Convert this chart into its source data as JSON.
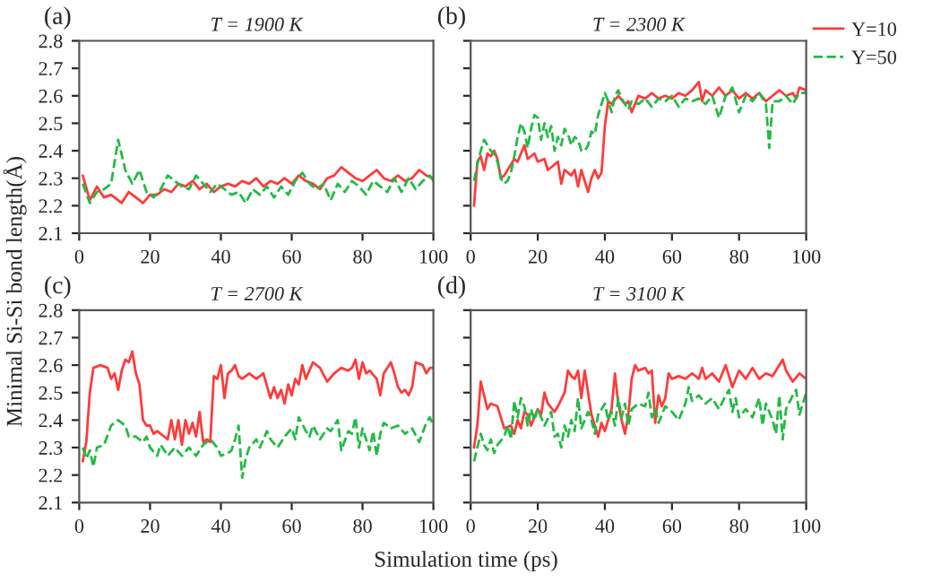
{
  "chart_data": [
    {
      "type": "line",
      "title": "T = 1900 K",
      "ylabel": "Minimal Si-Si bond length(Å)",
      "annotations": [
        "(a)"
      ],
      "xlim": [
        0,
        100
      ],
      "xticks": [
        0,
        20,
        40,
        60,
        80,
        100
      ],
      "ylim": [
        2.1,
        2.8
      ],
      "yticks": [
        2.1,
        2.2,
        2.3,
        2.4,
        2.5,
        2.6,
        2.7,
        2.8
      ],
      "grid": false,
      "legend": false,
      "series": [
        {
          "color": "#ff3b3b",
          "line_style": "solid",
          "x": [
            1,
            3,
            5,
            7,
            9,
            12,
            14,
            16,
            18,
            20,
            22,
            24,
            26,
            28,
            30,
            32,
            34,
            36,
            38,
            40,
            42,
            44,
            46,
            48,
            50,
            52,
            54,
            56,
            58,
            60,
            62,
            64,
            66,
            68,
            70,
            72,
            74,
            76,
            78,
            80,
            82,
            84,
            86,
            88,
            90,
            92,
            94,
            96,
            98,
            100
          ],
          "values": [
            2.31,
            2.22,
            2.27,
            2.23,
            2.24,
            2.21,
            2.25,
            2.23,
            2.21,
            2.24,
            2.24,
            2.26,
            2.25,
            2.28,
            2.27,
            2.29,
            2.26,
            2.28,
            2.25,
            2.27,
            2.28,
            2.27,
            2.29,
            2.28,
            2.3,
            2.27,
            2.29,
            2.28,
            2.3,
            2.28,
            2.31,
            2.29,
            2.28,
            2.26,
            2.3,
            2.31,
            2.34,
            2.32,
            2.3,
            2.29,
            2.31,
            2.33,
            2.3,
            2.29,
            2.31,
            2.29,
            2.3,
            2.33,
            2.31,
            2.3
          ]
        },
        {
          "color": "#22bb44",
          "line_style": "dashed",
          "x": [
            1,
            3,
            5,
            7,
            9,
            11,
            13,
            15,
            17,
            19,
            21,
            23,
            25,
            27,
            29,
            31,
            33,
            35,
            37,
            39,
            41,
            43,
            45,
            47,
            49,
            51,
            53,
            55,
            57,
            59,
            61,
            63,
            65,
            67,
            69,
            71,
            73,
            75,
            77,
            79,
            81,
            83,
            85,
            87,
            89,
            91,
            93,
            95,
            97,
            99,
            100
          ],
          "values": [
            2.28,
            2.21,
            2.25,
            2.26,
            2.28,
            2.44,
            2.33,
            2.28,
            2.33,
            2.25,
            2.23,
            2.26,
            2.31,
            2.29,
            2.27,
            2.26,
            2.31,
            2.28,
            2.25,
            2.28,
            2.26,
            2.24,
            2.25,
            2.21,
            2.26,
            2.24,
            2.27,
            2.23,
            2.27,
            2.24,
            2.29,
            2.32,
            2.28,
            2.26,
            2.28,
            2.22,
            2.28,
            2.25,
            2.29,
            2.27,
            2.24,
            2.29,
            2.27,
            2.25,
            2.3,
            2.25,
            2.3,
            2.26,
            2.29,
            2.31,
            2.29
          ]
        }
      ]
    },
    {
      "type": "line",
      "title": "T = 2300 K",
      "annotations": [
        "(b)"
      ],
      "xlim": [
        0,
        100
      ],
      "xticks": [
        0,
        20,
        40,
        60,
        80,
        100
      ],
      "ylim": [
        2.1,
        2.8
      ],
      "yticks": [
        2.1,
        2.2,
        2.3,
        2.4,
        2.5,
        2.6,
        2.7,
        2.8
      ],
      "tick_labels": "x",
      "grid": false,
      "legend": "right",
      "series": [
        {
          "name": "Y=10",
          "color": "#ff3b3b",
          "line_style": "solid",
          "x": [
            1,
            2,
            3,
            4,
            5,
            6,
            7,
            8,
            9,
            10,
            12,
            13,
            14,
            16,
            17,
            18,
            19,
            20,
            22,
            23,
            24,
            26,
            27,
            28,
            30,
            31,
            32,
            33,
            35,
            36,
            37,
            38,
            39,
            40,
            41,
            42,
            44,
            46,
            47,
            48,
            50,
            52,
            54,
            56,
            58,
            60,
            62,
            64,
            66,
            68,
            69,
            70,
            72,
            74,
            76,
            78,
            80,
            82,
            84,
            86,
            88,
            90,
            92,
            94,
            96,
            97,
            98,
            100
          ],
          "values": [
            2.2,
            2.36,
            2.38,
            2.33,
            2.39,
            2.38,
            2.4,
            2.37,
            2.3,
            2.31,
            2.35,
            2.37,
            2.36,
            2.42,
            2.37,
            2.38,
            2.39,
            2.36,
            2.37,
            2.33,
            2.34,
            2.36,
            2.28,
            2.33,
            2.31,
            2.33,
            2.27,
            2.33,
            2.25,
            2.3,
            2.33,
            2.3,
            2.32,
            2.49,
            2.58,
            2.57,
            2.6,
            2.57,
            2.58,
            2.54,
            2.6,
            2.59,
            2.61,
            2.59,
            2.6,
            2.59,
            2.61,
            2.6,
            2.62,
            2.65,
            2.58,
            2.62,
            2.6,
            2.63,
            2.6,
            2.62,
            2.59,
            2.61,
            2.59,
            2.61,
            2.58,
            2.6,
            2.62,
            2.6,
            2.61,
            2.59,
            2.63,
            2.62
          ]
        },
        {
          "name": "Y=50",
          "color": "#22bb44",
          "line_style": "dashed",
          "x": [
            1,
            2,
            3,
            4,
            5,
            6,
            7,
            8,
            9,
            10,
            11,
            12,
            13,
            14,
            15,
            16,
            17,
            18,
            19,
            20,
            21,
            22,
            23,
            24,
            25,
            26,
            27,
            28,
            29,
            30,
            31,
            32,
            33,
            34,
            35,
            36,
            37,
            38,
            39,
            40,
            41,
            42,
            43,
            44,
            45,
            47,
            48,
            50,
            52,
            54,
            56,
            58,
            60,
            62,
            64,
            66,
            68,
            70,
            72,
            74,
            76,
            78,
            80,
            82,
            84,
            86,
            88,
            89,
            90,
            92,
            94,
            96,
            98,
            100
          ],
          "values": [
            2.29,
            2.35,
            2.4,
            2.44,
            2.42,
            2.4,
            2.39,
            2.36,
            2.3,
            2.28,
            2.29,
            2.32,
            2.38,
            2.45,
            2.5,
            2.47,
            2.41,
            2.48,
            2.53,
            2.52,
            2.44,
            2.5,
            2.45,
            2.49,
            2.4,
            2.45,
            2.42,
            2.48,
            2.46,
            2.42,
            2.45,
            2.44,
            2.4,
            2.4,
            2.42,
            2.47,
            2.46,
            2.53,
            2.57,
            2.61,
            2.58,
            2.54,
            2.6,
            2.62,
            2.59,
            2.55,
            2.58,
            2.57,
            2.59,
            2.56,
            2.59,
            2.58,
            2.6,
            2.56,
            2.59,
            2.58,
            2.59,
            2.57,
            2.6,
            2.52,
            2.6,
            2.63,
            2.54,
            2.6,
            2.58,
            2.61,
            2.57,
            2.41,
            2.58,
            2.58,
            2.6,
            2.57,
            2.61,
            2.61
          ]
        }
      ]
    },
    {
      "type": "line",
      "title": "T = 2700 K",
      "xlabel": "Simulation time (ps)",
      "annotations": [
        "(c)"
      ],
      "xlim": [
        0,
        100
      ],
      "xticks": [
        0,
        20,
        40,
        60,
        80,
        100
      ],
      "ylim": [
        2.1,
        2.8
      ],
      "yticks": [
        2.1,
        2.2,
        2.3,
        2.4,
        2.5,
        2.6,
        2.7,
        2.8
      ],
      "grid": false,
      "legend": false,
      "series": [
        {
          "color": "#ff3b3b",
          "line_style": "solid",
          "x": [
            1,
            2,
            3,
            4,
            6,
            8,
            9,
            10,
            11,
            12,
            13,
            14,
            15,
            16,
            17,
            18,
            19,
            20,
            21,
            22,
            24,
            25,
            26,
            27,
            28,
            29,
            30,
            31,
            32,
            33,
            34,
            35,
            36,
            37,
            38,
            39,
            40,
            41,
            42,
            43,
            44,
            45,
            46,
            48,
            50,
            52,
            54,
            55,
            56,
            57,
            58,
            59,
            60,
            61,
            62,
            63,
            64,
            66,
            68,
            70,
            72,
            74,
            76,
            77,
            78,
            79,
            80,
            81,
            82,
            84,
            85,
            86,
            88,
            89,
            90,
            91,
            92,
            93,
            94,
            95,
            97,
            98,
            99,
            100
          ],
          "values": [
            2.25,
            2.32,
            2.5,
            2.59,
            2.6,
            2.59,
            2.55,
            2.57,
            2.51,
            2.58,
            2.62,
            2.61,
            2.65,
            2.57,
            2.53,
            2.4,
            2.38,
            2.38,
            2.35,
            2.36,
            2.34,
            2.33,
            2.4,
            2.33,
            2.4,
            2.31,
            2.4,
            2.35,
            2.39,
            2.34,
            2.43,
            2.32,
            2.33,
            2.32,
            2.56,
            2.55,
            2.6,
            2.48,
            2.57,
            2.58,
            2.6,
            2.56,
            2.55,
            2.57,
            2.55,
            2.57,
            2.48,
            2.52,
            2.48,
            2.51,
            2.46,
            2.53,
            2.49,
            2.55,
            2.53,
            2.6,
            2.55,
            2.61,
            2.59,
            2.54,
            2.57,
            2.59,
            2.58,
            2.59,
            2.62,
            2.55,
            2.61,
            2.57,
            2.58,
            2.55,
            2.49,
            2.57,
            2.61,
            2.57,
            2.52,
            2.5,
            2.51,
            2.49,
            2.52,
            2.61,
            2.6,
            2.57,
            2.59,
            2.59
          ]
        },
        {
          "color": "#22bb44",
          "line_style": "dashed",
          "x": [
            1,
            2,
            3,
            4,
            5,
            7,
            9,
            11,
            13,
            14,
            16,
            18,
            19,
            20,
            22,
            23,
            25,
            27,
            29,
            31,
            33,
            35,
            37,
            39,
            40,
            42,
            43,
            44,
            45,
            46,
            47,
            48,
            50,
            51,
            53,
            54,
            56,
            58,
            60,
            61,
            62,
            64,
            65,
            66,
            68,
            70,
            71,
            73,
            74,
            76,
            77,
            78,
            79,
            80,
            82,
            83,
            84,
            85,
            86,
            88,
            90,
            92,
            94,
            96,
            98,
            99,
            100
          ],
          "values": [
            2.3,
            2.26,
            2.29,
            2.23,
            2.3,
            2.31,
            2.38,
            2.4,
            2.38,
            2.34,
            2.34,
            2.32,
            2.34,
            2.3,
            2.27,
            2.31,
            2.27,
            2.3,
            2.27,
            2.3,
            2.27,
            2.31,
            2.33,
            2.3,
            2.27,
            2.28,
            2.29,
            2.33,
            2.38,
            2.19,
            2.26,
            2.3,
            2.33,
            2.3,
            2.36,
            2.33,
            2.3,
            2.34,
            2.37,
            2.33,
            2.41,
            2.36,
            2.34,
            2.38,
            2.33,
            2.37,
            2.36,
            2.4,
            2.29,
            2.36,
            2.35,
            2.41,
            2.3,
            2.37,
            2.29,
            2.36,
            2.27,
            2.35,
            2.39,
            2.37,
            2.38,
            2.35,
            2.37,
            2.32,
            2.39,
            2.41,
            2.38
          ]
        }
      ]
    },
    {
      "type": "line",
      "title": "T = 3100 K",
      "annotations": [
        "(d)"
      ],
      "xlim": [
        0,
        100
      ],
      "xticks": [
        0,
        20,
        40,
        60,
        80,
        100
      ],
      "ylim": [
        2.1,
        2.8
      ],
      "yticks": [
        2.1,
        2.2,
        2.3,
        2.4,
        2.5,
        2.6,
        2.7,
        2.8
      ],
      "tick_labels": "x",
      "grid": false,
      "legend": false,
      "series": [
        {
          "color": "#ff3b3b",
          "line_style": "solid",
          "x": [
            1,
            2,
            3,
            4,
            5,
            6,
            8,
            9,
            10,
            12,
            13,
            14,
            15,
            16,
            17,
            18,
            20,
            21,
            22,
            23,
            25,
            26,
            28,
            29,
            30,
            31,
            32,
            33,
            34,
            35,
            36,
            37,
            38,
            39,
            40,
            42,
            43,
            44,
            45,
            46,
            47,
            48,
            49,
            50,
            52,
            53,
            54,
            55,
            56,
            57,
            58,
            59,
            60,
            62,
            64,
            66,
            68,
            69,
            70,
            72,
            74,
            76,
            77,
            78,
            80,
            82,
            84,
            86,
            88,
            90,
            92,
            93,
            94,
            96,
            98,
            100
          ],
          "values": [
            2.3,
            2.38,
            2.54,
            2.49,
            2.44,
            2.46,
            2.45,
            2.41,
            2.37,
            2.38,
            2.35,
            2.4,
            2.37,
            2.43,
            2.42,
            2.38,
            2.44,
            2.42,
            2.5,
            2.46,
            2.43,
            2.45,
            2.5,
            2.58,
            2.56,
            2.55,
            2.58,
            2.48,
            2.58,
            2.5,
            2.42,
            2.38,
            2.34,
            2.39,
            2.36,
            2.44,
            2.57,
            2.46,
            2.4,
            2.35,
            2.42,
            2.55,
            2.6,
            2.58,
            2.59,
            2.57,
            2.58,
            2.39,
            2.49,
            2.45,
            2.48,
            2.57,
            2.55,
            2.56,
            2.55,
            2.57,
            2.55,
            2.59,
            2.55,
            2.57,
            2.54,
            2.6,
            2.56,
            2.52,
            2.58,
            2.55,
            2.59,
            2.55,
            2.57,
            2.56,
            2.6,
            2.62,
            2.58,
            2.54,
            2.57,
            2.55
          ]
        },
        {
          "color": "#22bb44",
          "line_style": "dashed",
          "x": [
            1,
            2,
            3,
            4,
            5,
            6,
            7,
            8,
            10,
            11,
            12,
            13,
            14,
            15,
            16,
            17,
            18,
            19,
            20,
            22,
            24,
            25,
            26,
            27,
            28,
            29,
            30,
            31,
            32,
            33,
            35,
            36,
            37,
            38,
            40,
            41,
            42,
            43,
            44,
            45,
            46,
            47,
            48,
            50,
            52,
            53,
            54,
            55,
            56,
            58,
            60,
            62,
            64,
            65,
            66,
            68,
            70,
            72,
            74,
            76,
            77,
            78,
            79,
            80,
            82,
            84,
            86,
            87,
            88,
            90,
            91,
            92,
            93,
            94,
            96,
            97,
            98,
            100
          ],
          "values": [
            2.25,
            2.3,
            2.35,
            2.31,
            2.29,
            2.33,
            2.28,
            2.31,
            2.34,
            2.38,
            2.33,
            2.47,
            2.41,
            2.48,
            2.45,
            2.38,
            2.44,
            2.4,
            2.44,
            2.38,
            2.43,
            2.34,
            2.35,
            2.3,
            2.38,
            2.34,
            2.4,
            2.36,
            2.48,
            2.37,
            2.43,
            2.4,
            2.35,
            2.42,
            2.46,
            2.4,
            2.43,
            2.38,
            2.48,
            2.41,
            2.46,
            2.38,
            2.44,
            2.46,
            2.45,
            2.5,
            2.41,
            2.44,
            2.39,
            2.45,
            2.43,
            2.4,
            2.46,
            2.52,
            2.47,
            2.49,
            2.46,
            2.48,
            2.44,
            2.49,
            2.51,
            2.43,
            2.48,
            2.41,
            2.44,
            2.41,
            2.48,
            2.38,
            2.46,
            2.4,
            2.35,
            2.49,
            2.33,
            2.44,
            2.49,
            2.51,
            2.42,
            2.5
          ]
        }
      ]
    }
  ]
}
